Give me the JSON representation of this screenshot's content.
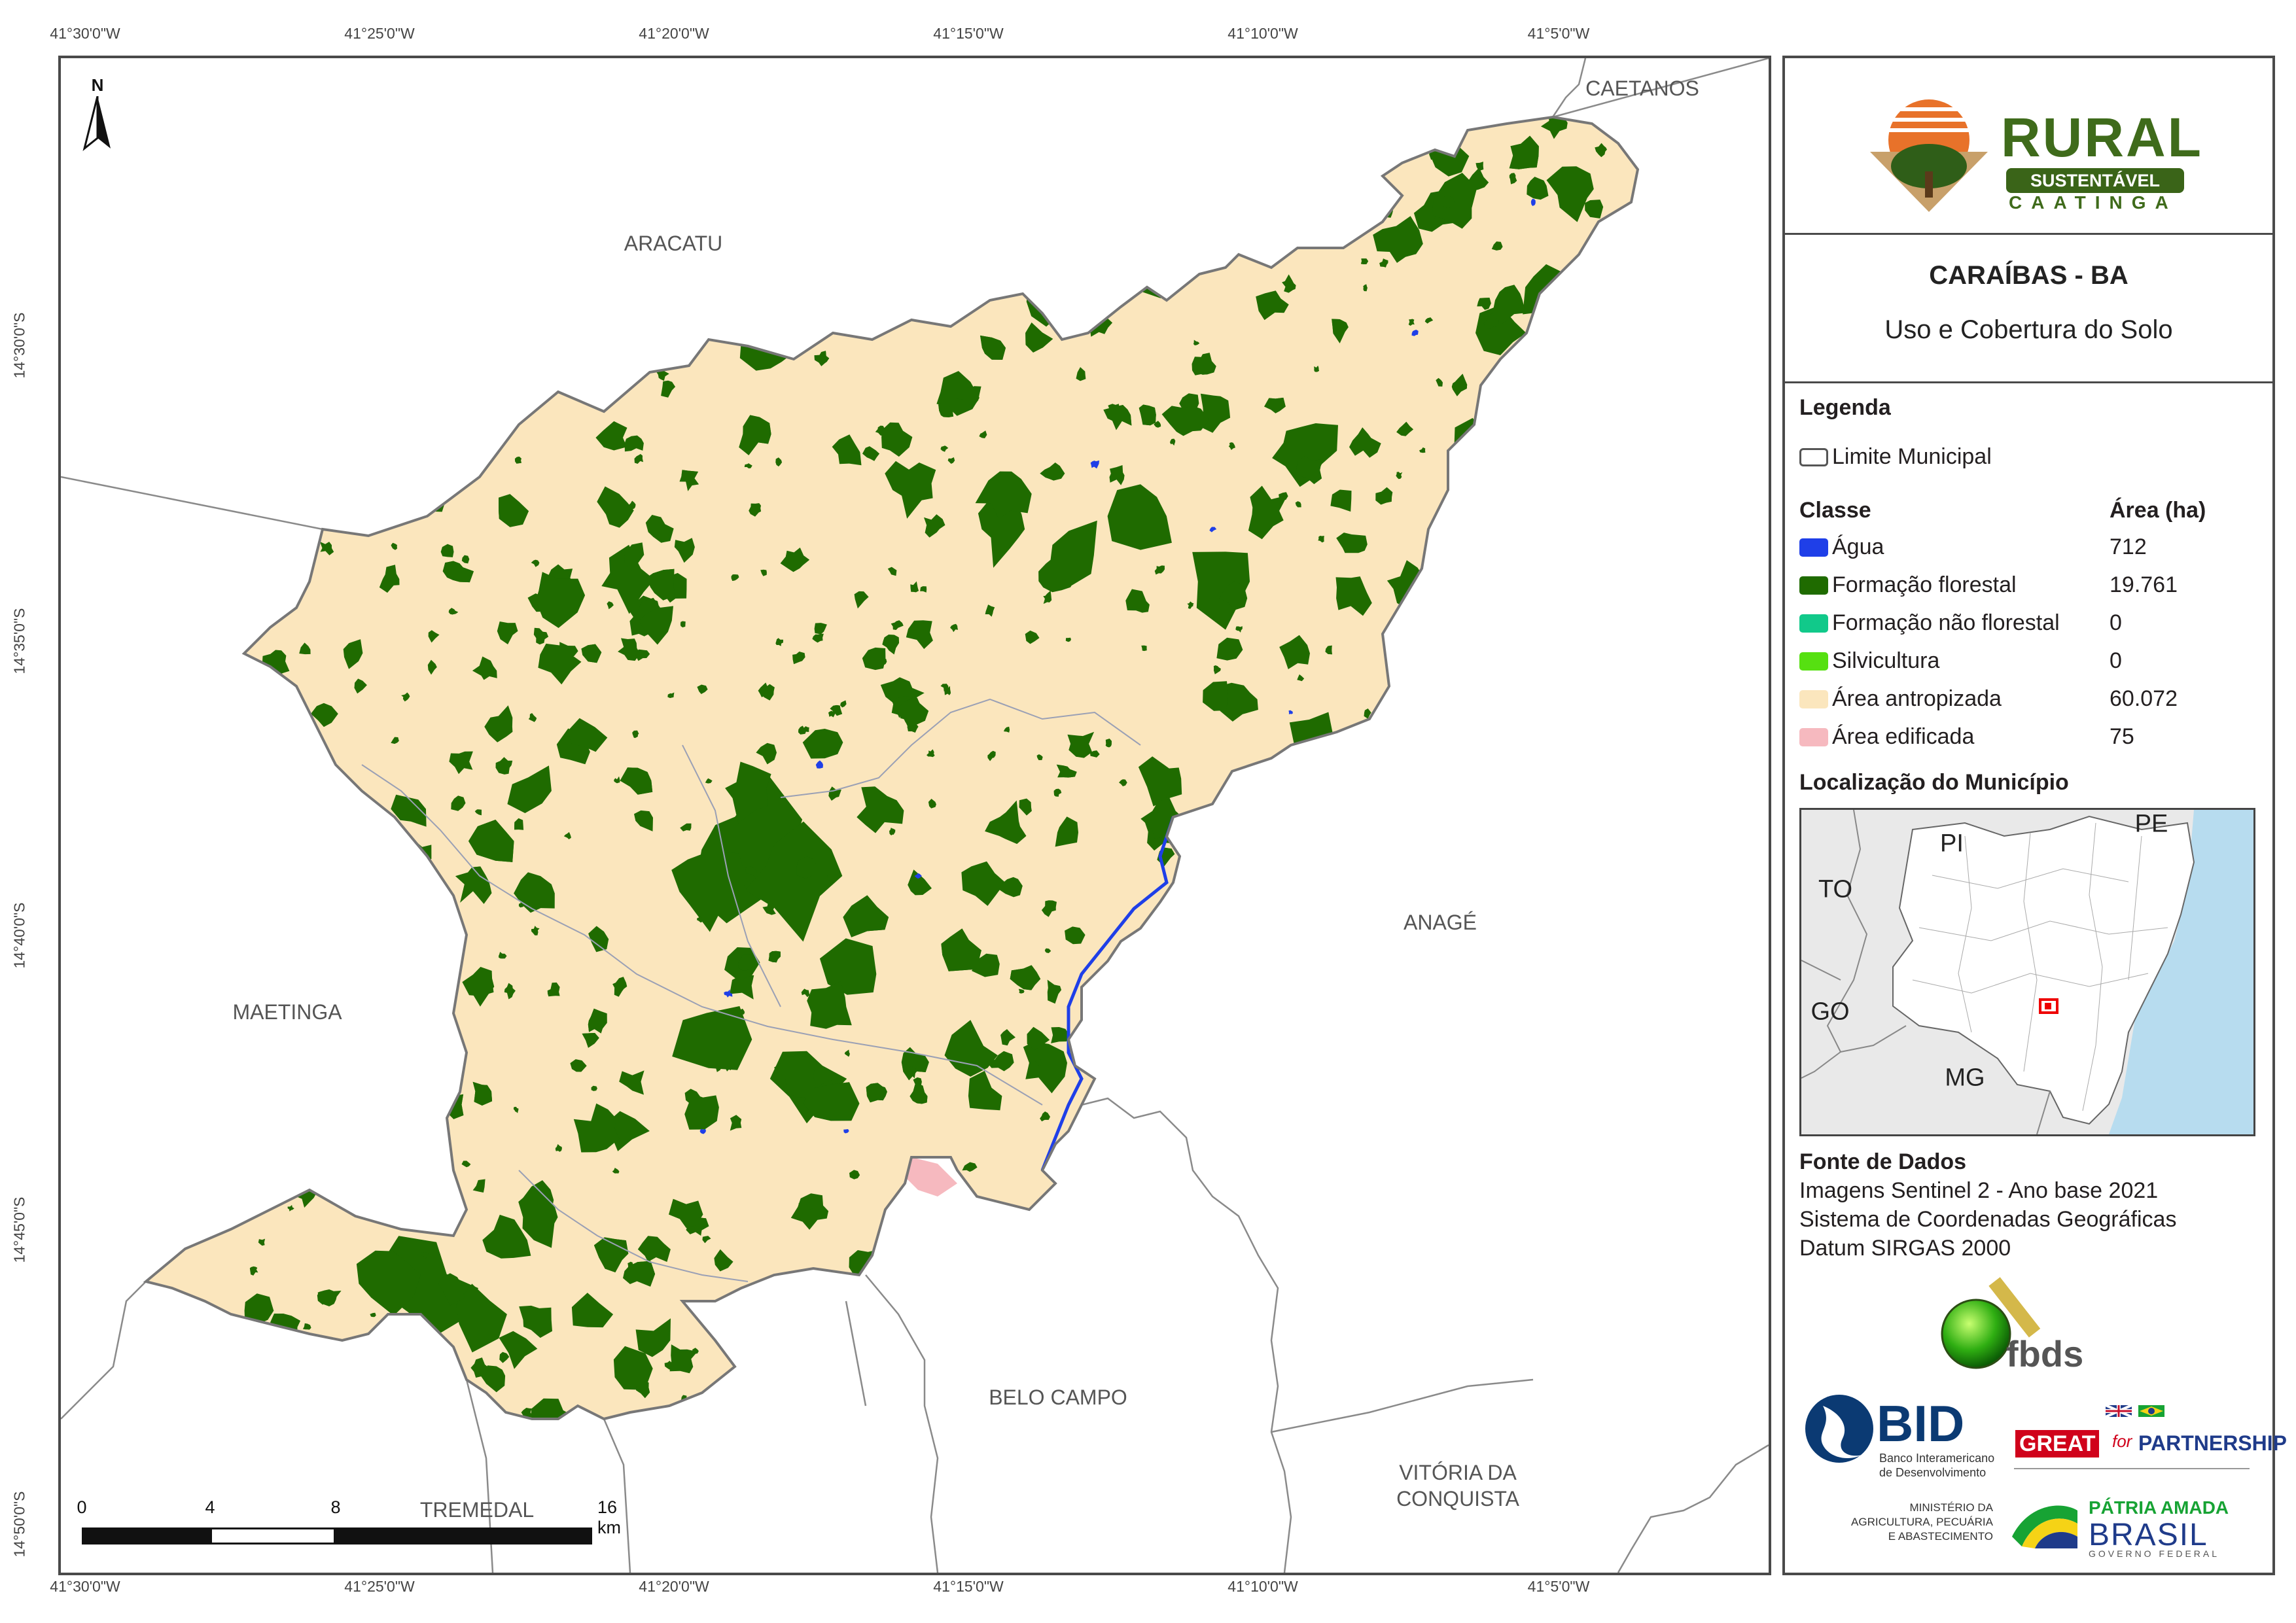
{
  "coordinates": {
    "longitudes": [
      "41°30'0\"W",
      "41°25'0\"W",
      "41°20'0\"W",
      "41°15'0\"W",
      "41°10'0\"W",
      "41°5'0\"W"
    ],
    "latitudes": [
      "14°30'0\"S",
      "14°35'0\"S",
      "14°40'0\"S",
      "14°45'0\"S",
      "14°50'0\"S"
    ]
  },
  "map": {
    "north_label": "N",
    "neighbors": {
      "caetanos": "CAETANOS",
      "aracatu": "ARACATU",
      "anage": "ANAGÉ",
      "maetinga": "MAETINGA",
      "belo_campo": "BELO CAMPO",
      "vitoria_da_conquista": "VITÓRIA DA\nCONQUISTA",
      "tremedal": "TREMEDAL"
    },
    "scale_bar": {
      "ticks": [
        "0",
        "4",
        "8",
        "16 km"
      ]
    },
    "colors": {
      "agua": "#1f3fe8",
      "formacao_florestal": "#1f6b00",
      "formacao_nao_florestal": "#11c98a",
      "silvicultura": "#56e011",
      "area_antropizada": "#fbe6bd",
      "area_edificada": "#f6b9bf",
      "boundary": "#777777"
    }
  },
  "legend_panel": {
    "logo": {
      "rural": "RURAL",
      "sustentavel": "SUSTENTÁVEL",
      "caatinga": "CAATINGA"
    },
    "title": "CARAÍBAS - BA",
    "subtitle": "Uso e Cobertura do Solo",
    "legend_heading": "Legenda",
    "limite_label": "Limite Municipal",
    "class_header": "Classe",
    "area_header": "Área (ha)",
    "classes": [
      {
        "label": "Água",
        "area": "712",
        "color": "#1f3fe8"
      },
      {
        "label": "Formação florestal",
        "area": "19.761",
        "color": "#1f6b00"
      },
      {
        "label": "Formação não florestal",
        "area": "0",
        "color": "#11c98a"
      },
      {
        "label": "Silvicultura",
        "area": "0",
        "color": "#56e011"
      },
      {
        "label": "Área antropizada",
        "area": "60.072",
        "color": "#fbe6bd"
      },
      {
        "label": "Área edificada",
        "area": "75",
        "color": "#f6b9bf"
      }
    ],
    "location_heading": "Localização do Município",
    "states": {
      "pi": "PI",
      "pe": "PE",
      "to": "TO",
      "go": "GO",
      "mg": "MG"
    },
    "source_heading": "Fonte de Dados",
    "source_lines": [
      "Imagens Sentinel 2 - Ano base 2021",
      "Sistema de Coordenadas Geográficas",
      "Datum SIRGAS 2000"
    ],
    "fbds": "fbds",
    "bid": {
      "name": "BID",
      "line1": "Banco Interamericano",
      "line2": "de Desenvolvimento"
    },
    "great": {
      "great": "GREAT",
      "for": "for",
      "partnership": "PARTNERSHIP"
    },
    "ministerio": [
      "MINISTÉRIO DA",
      "AGRICULTURA, PECUÁRIA",
      "E ABASTECIMENTO"
    ],
    "patria": {
      "line1": "PÁTRIA AMADA",
      "line2": "BRASIL",
      "line3": "GOVERNO FEDERAL"
    }
  }
}
